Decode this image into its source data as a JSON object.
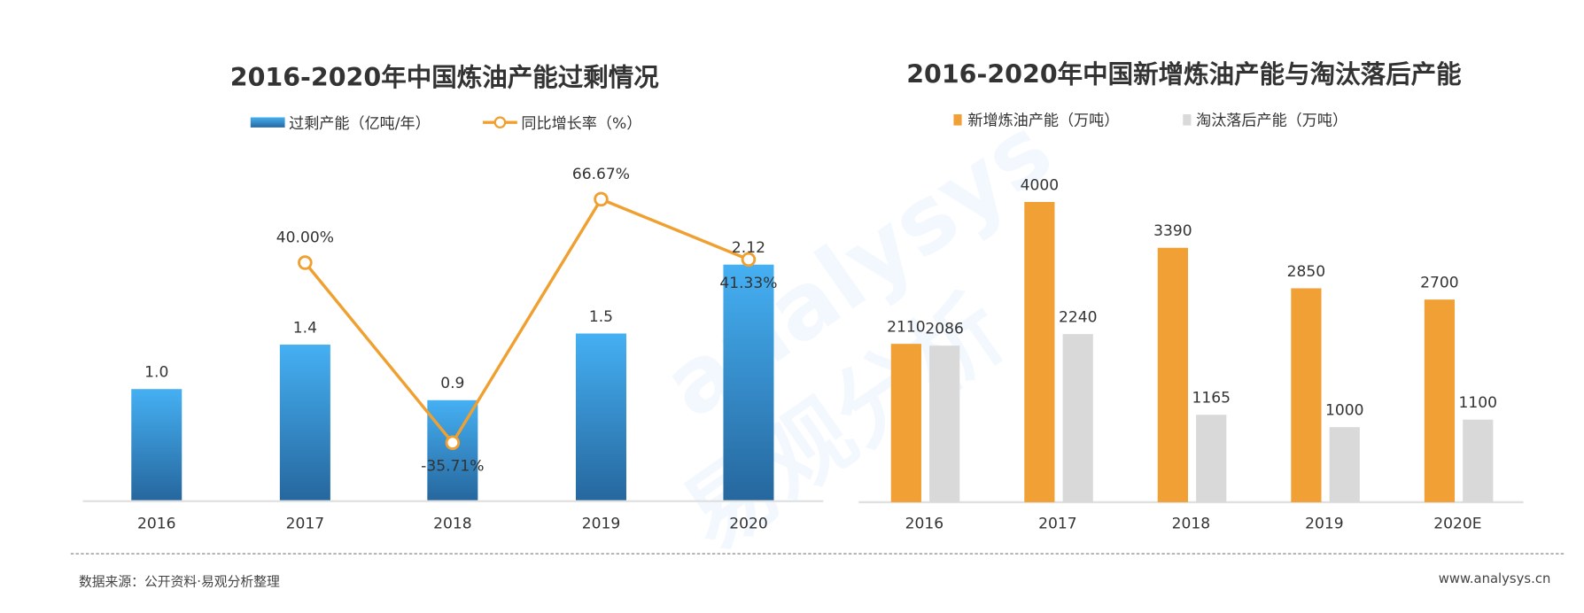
{
  "chart_data": [
    {
      "type": "bar+line",
      "title": "2016-2020年中国炼油产能过剩情况",
      "categories": [
        "2016",
        "2017",
        "2018",
        "2019",
        "2020"
      ],
      "series": [
        {
          "name": "过剩产能（亿吨/年）",
          "type": "bar",
          "values": [
            1.0,
            1.4,
            0.9,
            1.5,
            2.12
          ],
          "labels": [
            "1.0",
            "1.4",
            "0.9",
            "1.5",
            "2.12"
          ],
          "color": "#2e8bd6"
        },
        {
          "name": "同比增长率（%）",
          "type": "line",
          "values": [
            null,
            40.0,
            -35.71,
            66.67,
            41.33
          ],
          "labels": [
            "",
            "40.00%",
            "-35.71%",
            "66.67%",
            "41.33%"
          ],
          "color": "#f0a030"
        }
      ],
      "legend_position": "top-center",
      "grid": false
    },
    {
      "type": "bar",
      "title": "2016-2020年中国新增炼油产能与淘汰落后产能",
      "categories": [
        "2016",
        "2017",
        "2018",
        "2019",
        "2020E"
      ],
      "series": [
        {
          "name": "新增炼油产能（万吨）",
          "values": [
            2110,
            4000,
            3390,
            2850,
            2700
          ],
          "color": "#f0a035"
        },
        {
          "name": "淘汰落后产能（万吨）",
          "values": [
            2086,
            2240,
            1165,
            1000,
            1100
          ],
          "color": "#d9d9d9"
        }
      ],
      "legend_position": "top-center",
      "grid": false
    }
  ],
  "footer": {
    "source": "数据来源：公开资料·易观分析整理",
    "website": "www.analysys.cn"
  },
  "watermark": {
    "latin": "analysys",
    "cn": "易观分析"
  }
}
